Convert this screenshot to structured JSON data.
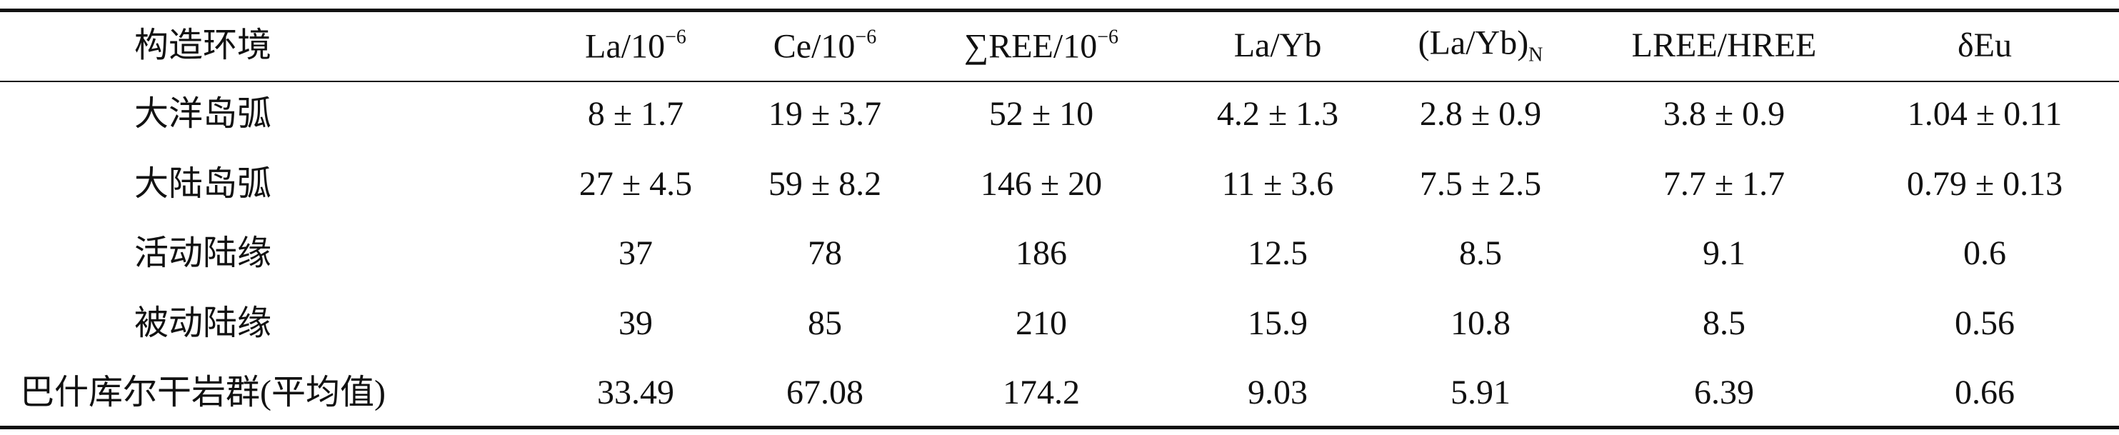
{
  "table": {
    "header": [
      {
        "main": "构造环境"
      },
      {
        "main": "La/10",
        "sup": "−6"
      },
      {
        "main": "Ce/10",
        "sup": "−6"
      },
      {
        "main": "∑REE/10",
        "sup": "−6"
      },
      {
        "main": "La/Yb"
      },
      {
        "main": "(La/Yb)",
        "sub": "N"
      },
      {
        "main": "LREE/HREE"
      },
      {
        "main": "δEu"
      }
    ],
    "rows": [
      [
        "大洋岛弧",
        "8 ± 1.7",
        "19 ± 3.7",
        "52 ± 10",
        "4.2 ± 1.3",
        "2.8 ± 0.9",
        "3.8 ± 0.9",
        "1.04 ± 0.11"
      ],
      [
        "大陆岛弧",
        "27 ± 4.5",
        "59 ± 8.2",
        "146 ± 20",
        "11 ± 3.6",
        "7.5 ± 2.5",
        "7.7 ± 1.7",
        "0.79 ± 0.13"
      ],
      [
        "活动陆缘",
        "37",
        "78",
        "186",
        "12.5",
        "8.5",
        "9.1",
        "0.6"
      ],
      [
        "被动陆缘",
        "39",
        "85",
        "210",
        "15.9",
        "10.8",
        "8.5",
        "0.56"
      ],
      [
        "巴什库尔干岩群(平均值)",
        "33.49",
        "67.08",
        "174.2",
        "9.03",
        "5.91",
        "6.39",
        "0.66"
      ]
    ]
  }
}
